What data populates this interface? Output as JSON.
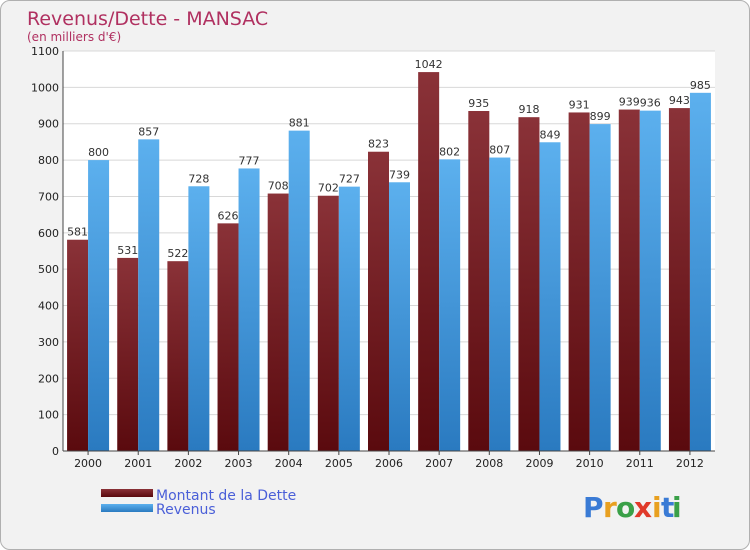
{
  "chart_data": {
    "type": "bar",
    "title": "Revenus/Dette - MANSAC",
    "subtitle": "(en milliers d'€)",
    "categories": [
      "2000",
      "2001",
      "2002",
      "2003",
      "2004",
      "2005",
      "2006",
      "2007",
      "2008",
      "2009",
      "2010",
      "2011",
      "2012"
    ],
    "series": [
      {
        "name": "Montant de la Dette",
        "color": "#6e1418",
        "values": [
          581,
          531,
          522,
          626,
          708,
          702,
          823,
          1042,
          935,
          918,
          931,
          939,
          943
        ]
      },
      {
        "name": "Revenus",
        "color": "#3a96dd",
        "values": [
          800,
          857,
          728,
          777,
          881,
          727,
          739,
          802,
          807,
          849,
          899,
          936,
          985
        ]
      }
    ],
    "ylim": [
      0,
      1100
    ],
    "yticks": [
      0,
      100,
      200,
      300,
      400,
      500,
      600,
      700,
      800,
      900,
      1000,
      1100
    ],
    "grid": true,
    "legend": "bottom-left"
  },
  "logo": {
    "letters": [
      "P",
      "r",
      "o",
      "x",
      "i",
      "t",
      "i"
    ],
    "colors": [
      "#3a7bd5",
      "#e8a020",
      "#3aa048",
      "#e03a2a",
      "#e8a020",
      "#3a7bd5",
      "#3aa048"
    ]
  }
}
